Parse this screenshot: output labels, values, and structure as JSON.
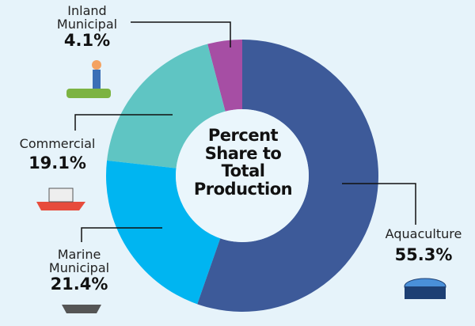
{
  "chart_data": {
    "type": "donut",
    "title": "Percent Share to Total Production",
    "categories": [
      "Aquaculture",
      "Marine Municipal",
      "Commercial",
      "Inland Municipal"
    ],
    "values": [
      55.3,
      21.4,
      19.1,
      4.1
    ],
    "value_labels": [
      "55.3%",
      "21.4%",
      "19.1%",
      "4.1%"
    ],
    "colors": [
      "#3d5a99",
      "#00b5f1",
      "#5fc5c3",
      "#a64ea4"
    ]
  }
}
